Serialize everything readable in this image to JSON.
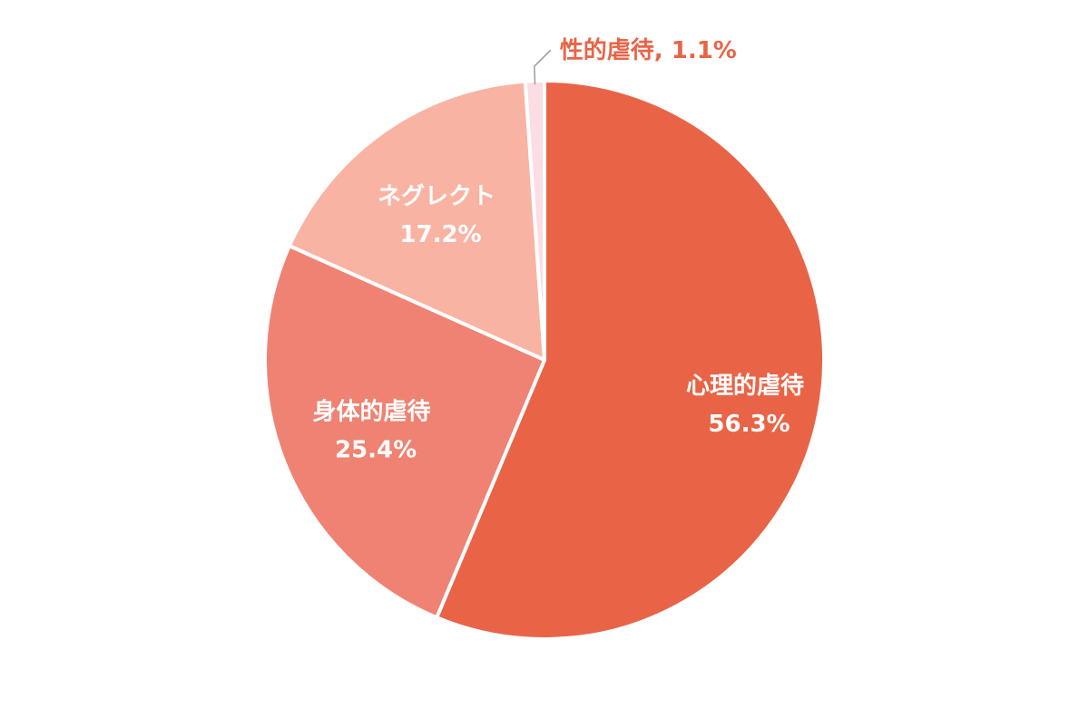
{
  "chart_data": {
    "type": "pie",
    "start_angle_deg": 0,
    "direction": "clockwise",
    "slice_border_color": "#ffffff",
    "slices": [
      {
        "label": "心理的虐待",
        "value": 56.3,
        "value_label": "56.3%",
        "color": "#E96447",
        "label_color": "#ffffff",
        "label_position": "inside"
      },
      {
        "label": "身体的虐待",
        "value": 25.4,
        "value_label": "25.4%",
        "color": "#EF8272",
        "label_color": "#ffffff",
        "label_position": "inside"
      },
      {
        "label": "ネグレクト",
        "value": 17.2,
        "value_label": "17.2%",
        "color": "#F9B3A3",
        "label_color": "#ffffff",
        "label_position": "inside"
      },
      {
        "label": "性的虐待",
        "value": 1.1,
        "value_label": "1.1%",
        "color": "#FCDDE3",
        "label_color": "#E96447",
        "label_position": "outside",
        "outside_text": "性的虐待, 1.1%"
      }
    ]
  }
}
